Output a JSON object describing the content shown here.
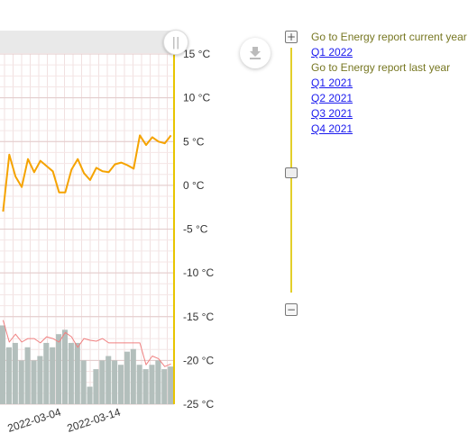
{
  "chart_data": {
    "type": "line",
    "y_axis": {
      "ticks": [
        "15 °C",
        "10 °C",
        "5 °C",
        "0 °C",
        "-5 °C",
        "-10 °C",
        "-15 °C",
        "-20 °C",
        "-25 °C"
      ],
      "values": [
        15,
        10,
        5,
        0,
        -5,
        -10,
        -15,
        -20,
        -25
      ],
      "ylim": [
        -25,
        15
      ]
    },
    "x_axis": {
      "ticks": [
        "2022-03-04",
        "2022-03-14"
      ]
    },
    "grid": true,
    "series": [
      {
        "kind": "line",
        "color": "#f5a300",
        "values": [
          -3,
          3.5,
          1,
          -0.2,
          3,
          1.5,
          2.8,
          2.2,
          1.6,
          -0.8,
          -0.8,
          1.8,
          3,
          1.4,
          0.6,
          2,
          1.6,
          1.5,
          2.4,
          2.6,
          2.3,
          1.9,
          5.7,
          4.6,
          5.5,
          5,
          4.8,
          5.7
        ]
      },
      {
        "kind": "line",
        "color": "#f08080",
        "values": [
          -15.4,
          -17.9,
          -17,
          -17.9,
          -17.5,
          -17.5,
          -18,
          -17.3,
          -17.5,
          -17.9,
          -16.8,
          -17.3,
          -18.5,
          -17.5,
          -17.7,
          -17.8,
          -17.5,
          -18,
          -18,
          -18,
          -18,
          -18,
          -18,
          -20.5,
          -19.5,
          -19.8,
          -20.7,
          -20.4
        ]
      },
      {
        "kind": "bar",
        "color": "#b3bfbc",
        "values": [
          -16,
          -18.5,
          -18,
          -20,
          -18.5,
          -20,
          -19.5,
          -18,
          -18.5,
          -17,
          -16.5,
          -18,
          -18,
          -20,
          -23,
          -21,
          -20,
          -19.5,
          -20,
          -20.5,
          -19,
          -18.7,
          -20.5,
          -21,
          -20.5,
          -20,
          -21,
          -20.7
        ]
      }
    ]
  },
  "zoom": {
    "plus_label": "+",
    "minus_label": "−",
    "level": 0.51
  },
  "navigator": {
    "handle_label": "||"
  },
  "download": {
    "icon": "download-icon"
  },
  "links": {
    "current_year": "Go to Energy report current year",
    "q1_2022": "Q1 2022",
    "last_year": "Go to Energy report last year",
    "q1_2021": "Q1 2021",
    "q2_2021": "Q2 2021",
    "q3_2021": "Q3 2021",
    "q4_2021": "Q4 2021"
  }
}
